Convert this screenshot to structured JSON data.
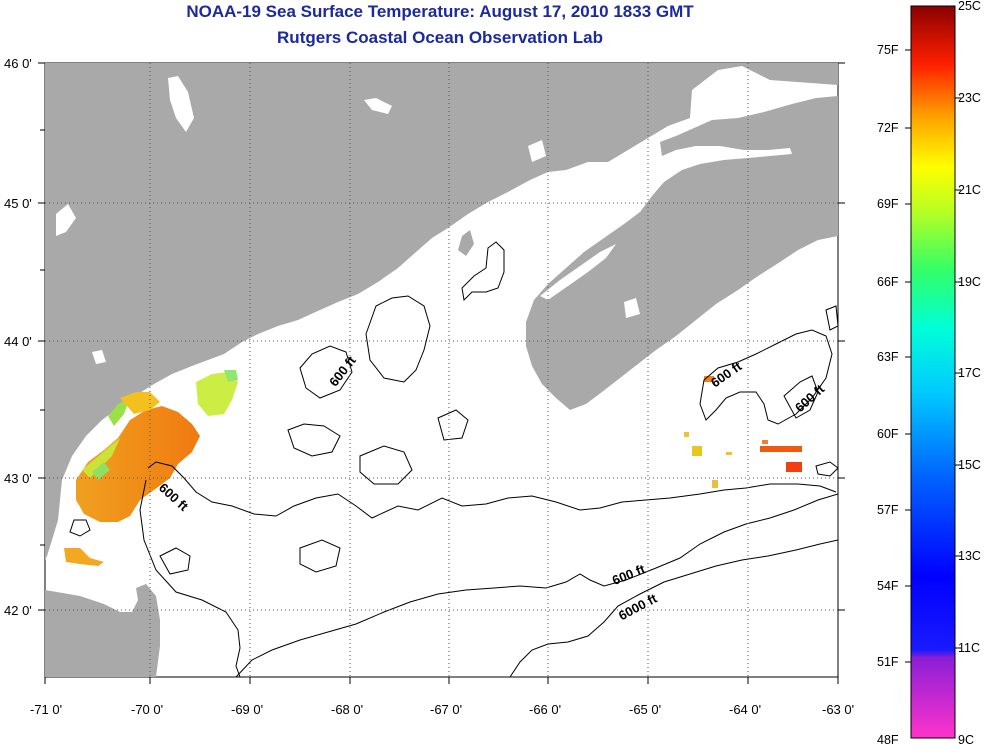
{
  "title": {
    "line1": "NOAA-19 Sea Surface Temperature:  August 17, 2010 1833 GMT",
    "line2": "Rutgers Coastal Ocean Observation Lab"
  },
  "map": {
    "lat_labels": [
      "46 0'",
      "45 0'",
      "44 0'",
      "43 0'",
      "42 0'"
    ],
    "lon_labels": [
      "-71 0'",
      "-70 0'",
      "-69 0'",
      "-68 0'",
      "-67 0'",
      "-66 0'",
      "-65 0'",
      "-64 0'",
      "-63 0'"
    ],
    "contour_labels": [
      "600 ft",
      "600 ft",
      "600 ft",
      "600 ft",
      "600 ft",
      "6000 ft"
    ],
    "colors": {
      "land": "#a9a9a9",
      "water": "#ffffff",
      "grid": "#555555"
    }
  },
  "colorbar": {
    "fahrenheit_labels": [
      "75F",
      "72F",
      "69F",
      "66F",
      "63F",
      "60F",
      "57F",
      "54F",
      "51F",
      "48F"
    ],
    "celsius_labels": [
      "25C",
      "23C",
      "21C",
      "19C",
      "17C",
      "15C",
      "13C",
      "11C",
      "9C"
    ]
  }
}
